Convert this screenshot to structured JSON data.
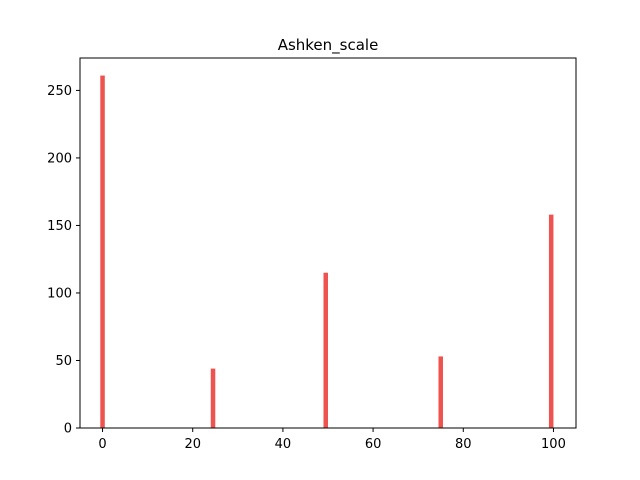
{
  "chart_data": {
    "type": "bar",
    "title": "Ashken_scale",
    "xlabel": "",
    "ylabel": "",
    "x": [
      0,
      24.5,
      49.5,
      75,
      99.5
    ],
    "values": [
      261,
      44,
      115,
      53,
      158
    ],
    "bar_width": 1,
    "xlim": [
      -5,
      105
    ],
    "ylim": [
      0,
      274
    ],
    "xticks": [
      0,
      20,
      40,
      60,
      80,
      100
    ],
    "yticks": [
      0,
      50,
      100,
      150,
      200,
      250
    ],
    "bar_color": "#ef5350",
    "grid": false,
    "legend": "none"
  }
}
